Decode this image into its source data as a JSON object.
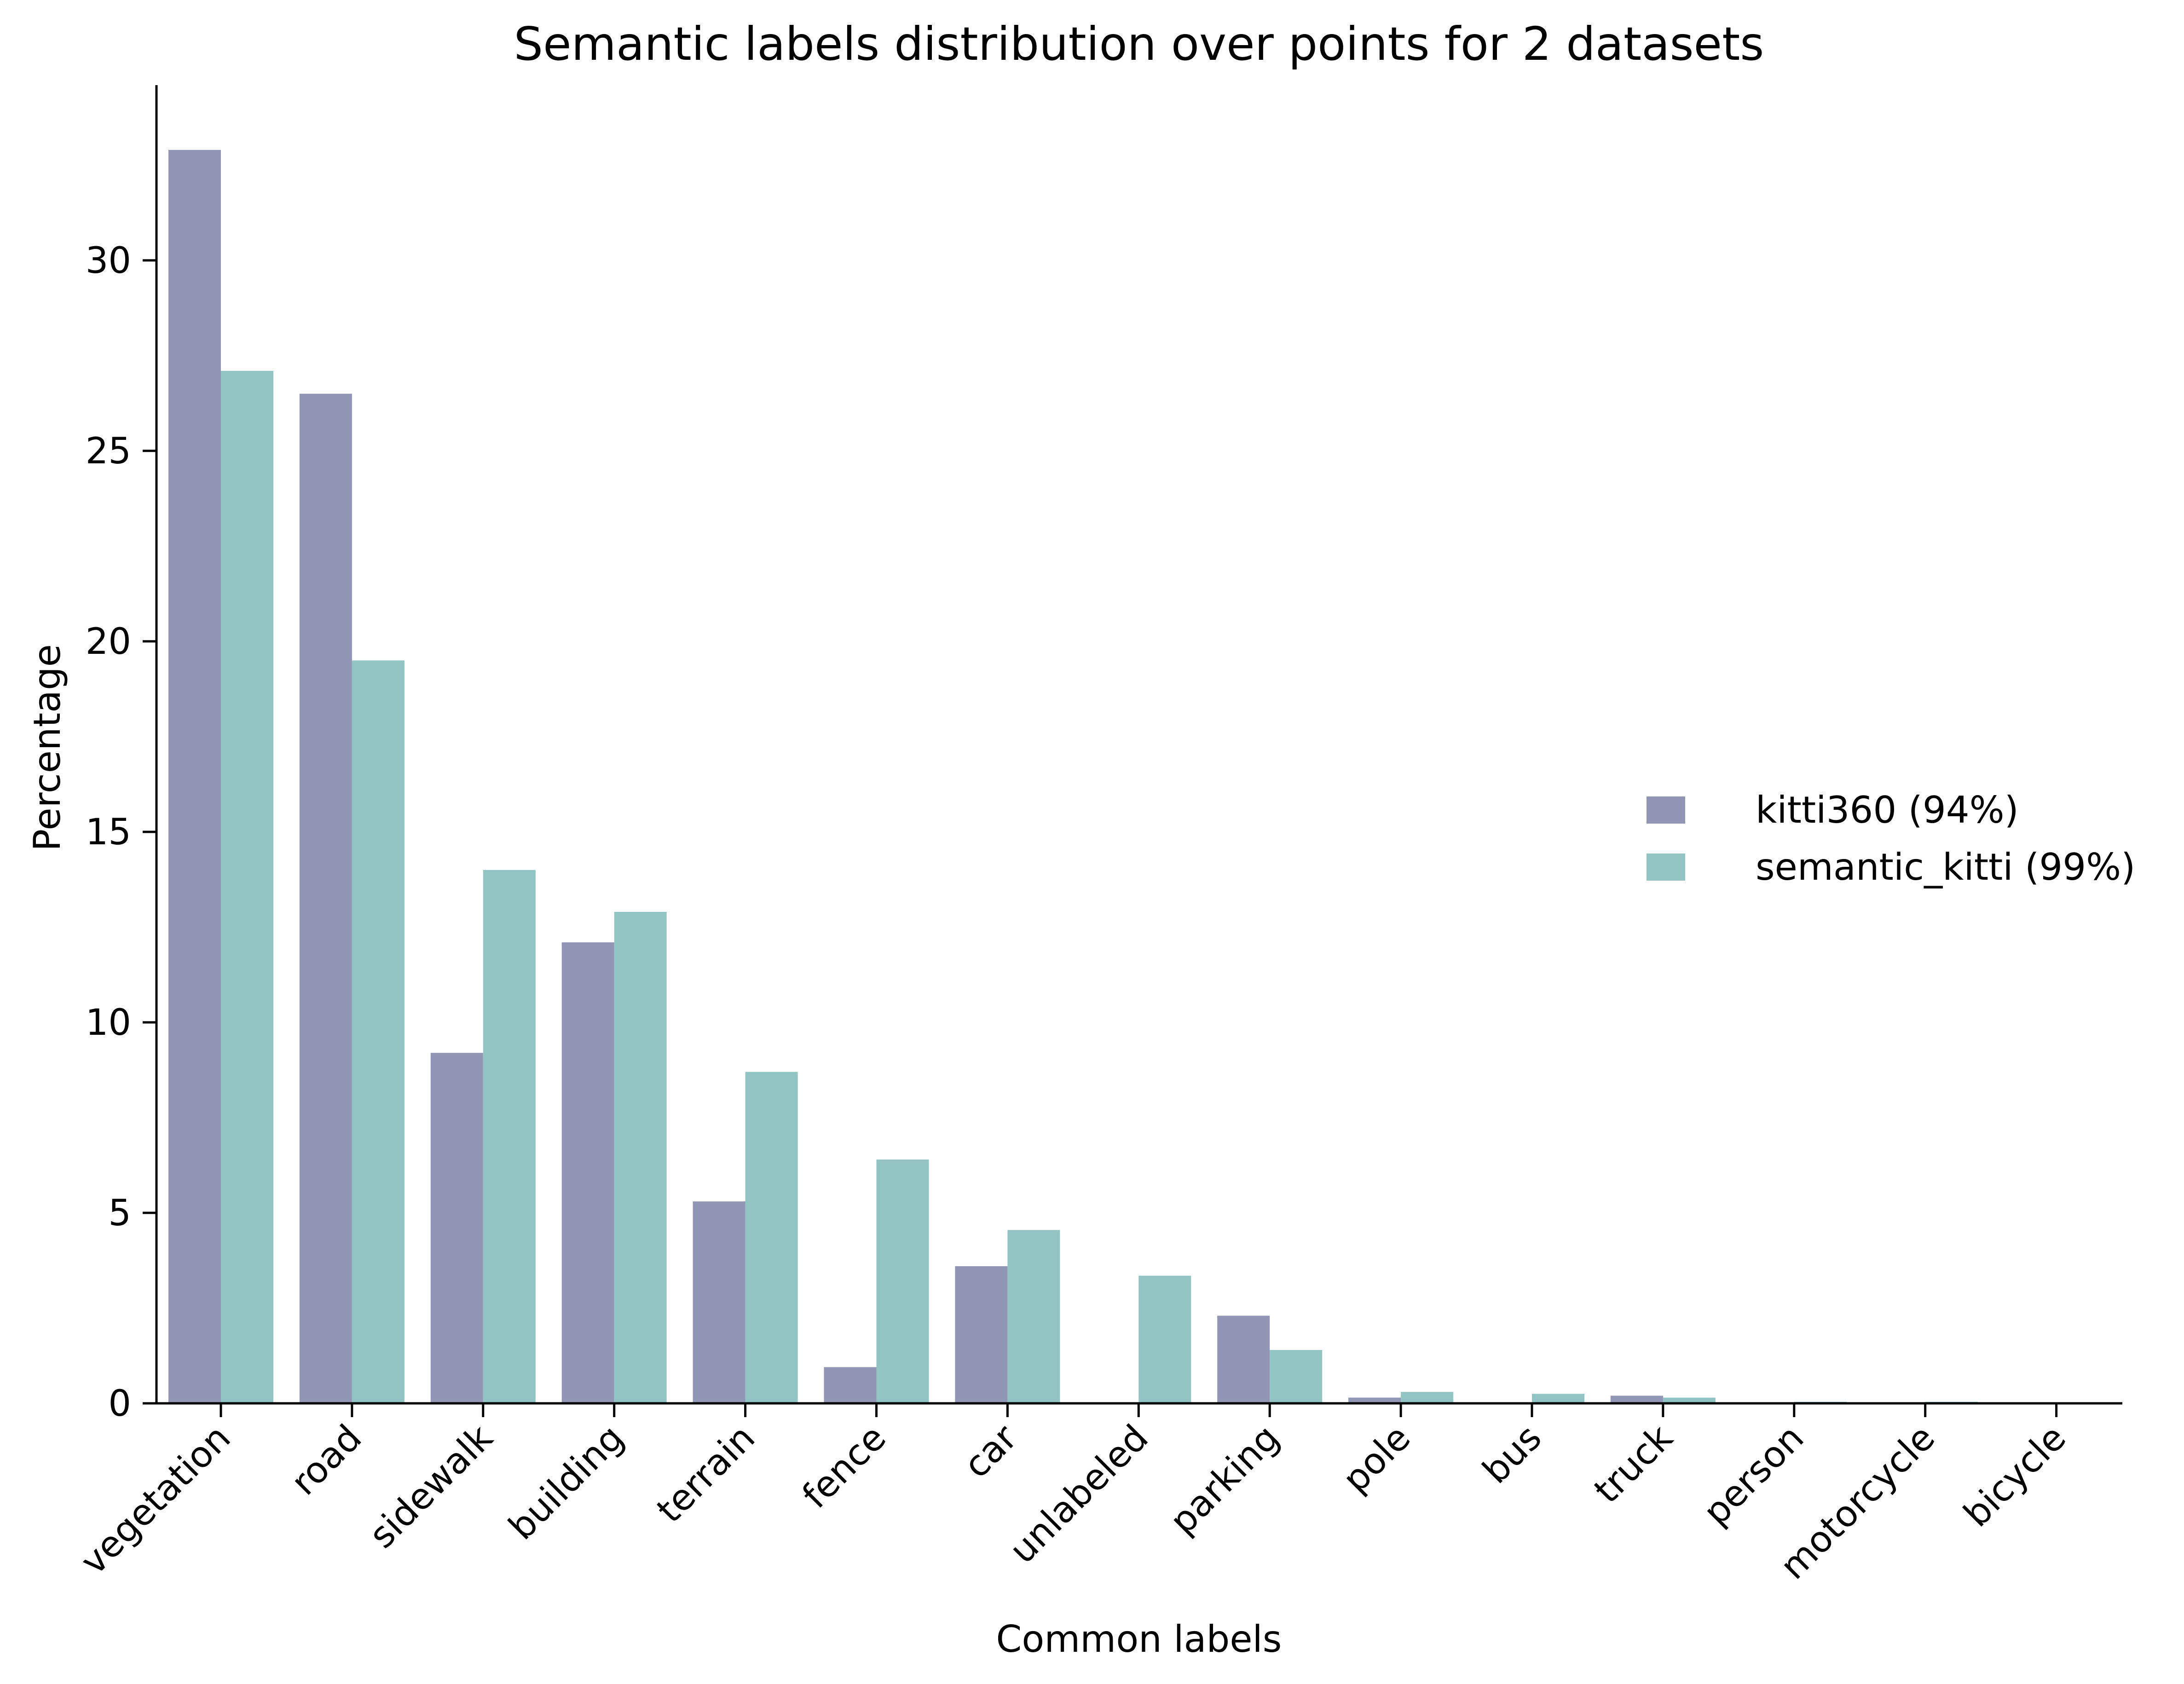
{
  "chart_data": {
    "type": "bar",
    "title": "Semantic labels distribution over points for 2 datasets",
    "xlabel": "Common labels",
    "ylabel": "Percentage",
    "ylim": [
      0,
      34.6
    ],
    "yticks": [
      0,
      5,
      10,
      15,
      20,
      25,
      30
    ],
    "grid": false,
    "legend_position": "center-right",
    "categories": [
      "vegetation",
      "road",
      "sidewalk",
      "building",
      "terrain",
      "fence",
      "car",
      "unlabeled",
      "parking",
      "pole",
      "bus",
      "truck",
      "person",
      "motorcycle",
      "bicycle"
    ],
    "series": [
      {
        "name": "kitti360 (94%)",
        "color": "#9296b5",
        "values": [
          32.9,
          26.5,
          9.2,
          12.1,
          5.3,
          0.95,
          3.6,
          0.0,
          2.3,
          0.15,
          0.0,
          0.2,
          0.01,
          0.0,
          0.0
        ]
      },
      {
        "name": "semantic_kitti (99%)",
        "color": "#93c4c4",
        "values": [
          27.1,
          19.5,
          14.0,
          12.9,
          8.7,
          6.4,
          4.55,
          3.35,
          1.4,
          0.3,
          0.25,
          0.15,
          0.04,
          0.04,
          0.01
        ]
      }
    ]
  }
}
